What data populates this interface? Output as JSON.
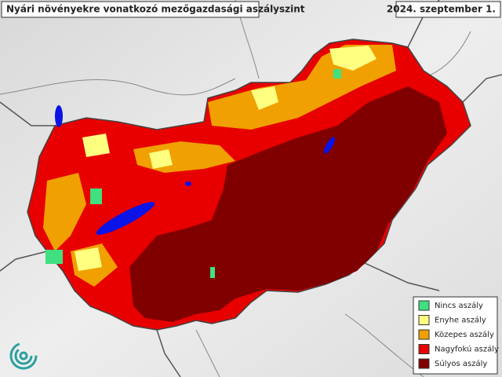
{
  "header": {
    "title": "Nyári növényekre vonatkozó mezőgazdasági aszályszint",
    "date": "2024. szeptember 1."
  },
  "legend": [
    {
      "label": "Nincs aszály",
      "color": "#40e080"
    },
    {
      "label": "Enyhe aszály",
      "color": "#ffff80"
    },
    {
      "label": "Közepes aszály",
      "color": "#f0a000"
    },
    {
      "label": "Nagyfokú aszály",
      "color": "#e80000"
    },
    {
      "label": "Súlyos aszály",
      "color": "#800000"
    }
  ]
}
